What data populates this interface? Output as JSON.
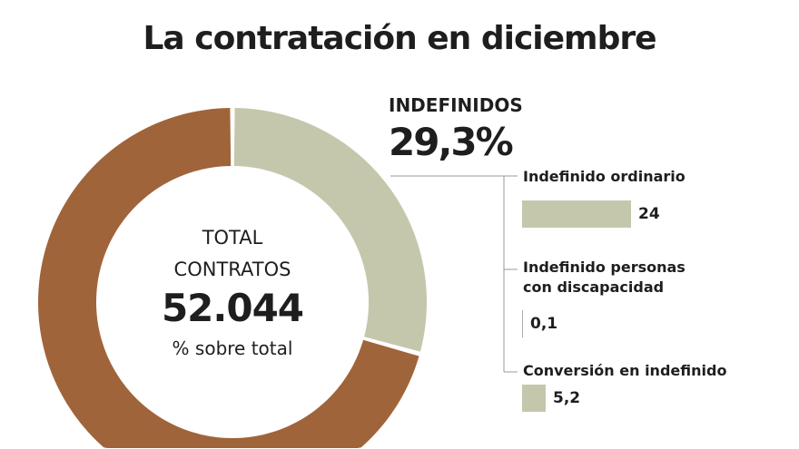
{
  "title": "La contratación en diciembre",
  "colors": {
    "indefinidos": "#c5c7ad",
    "resto": "#a0643a"
  },
  "center": {
    "line1": "TOTAL",
    "line2": "CONTRATOS",
    "value": "52.044",
    "sub": "% sobre total"
  },
  "chart_data": {
    "type": "pie",
    "title": "La contratación en diciembre",
    "donut": {
      "slices": [
        {
          "name": "INDEFINIDOS",
          "value": 29.3,
          "label": "29,3%"
        },
        {
          "value": 70.7
        }
      ]
    },
    "breakdown": {
      "type": "bar",
      "categories": [
        "Indefinido ordinario",
        "Indefinido personas con discapacidad",
        "Conversión en indefinido"
      ],
      "values": [
        24,
        0.1,
        5.2
      ],
      "labels": [
        "24",
        "0,1",
        "5,2"
      ]
    }
  }
}
